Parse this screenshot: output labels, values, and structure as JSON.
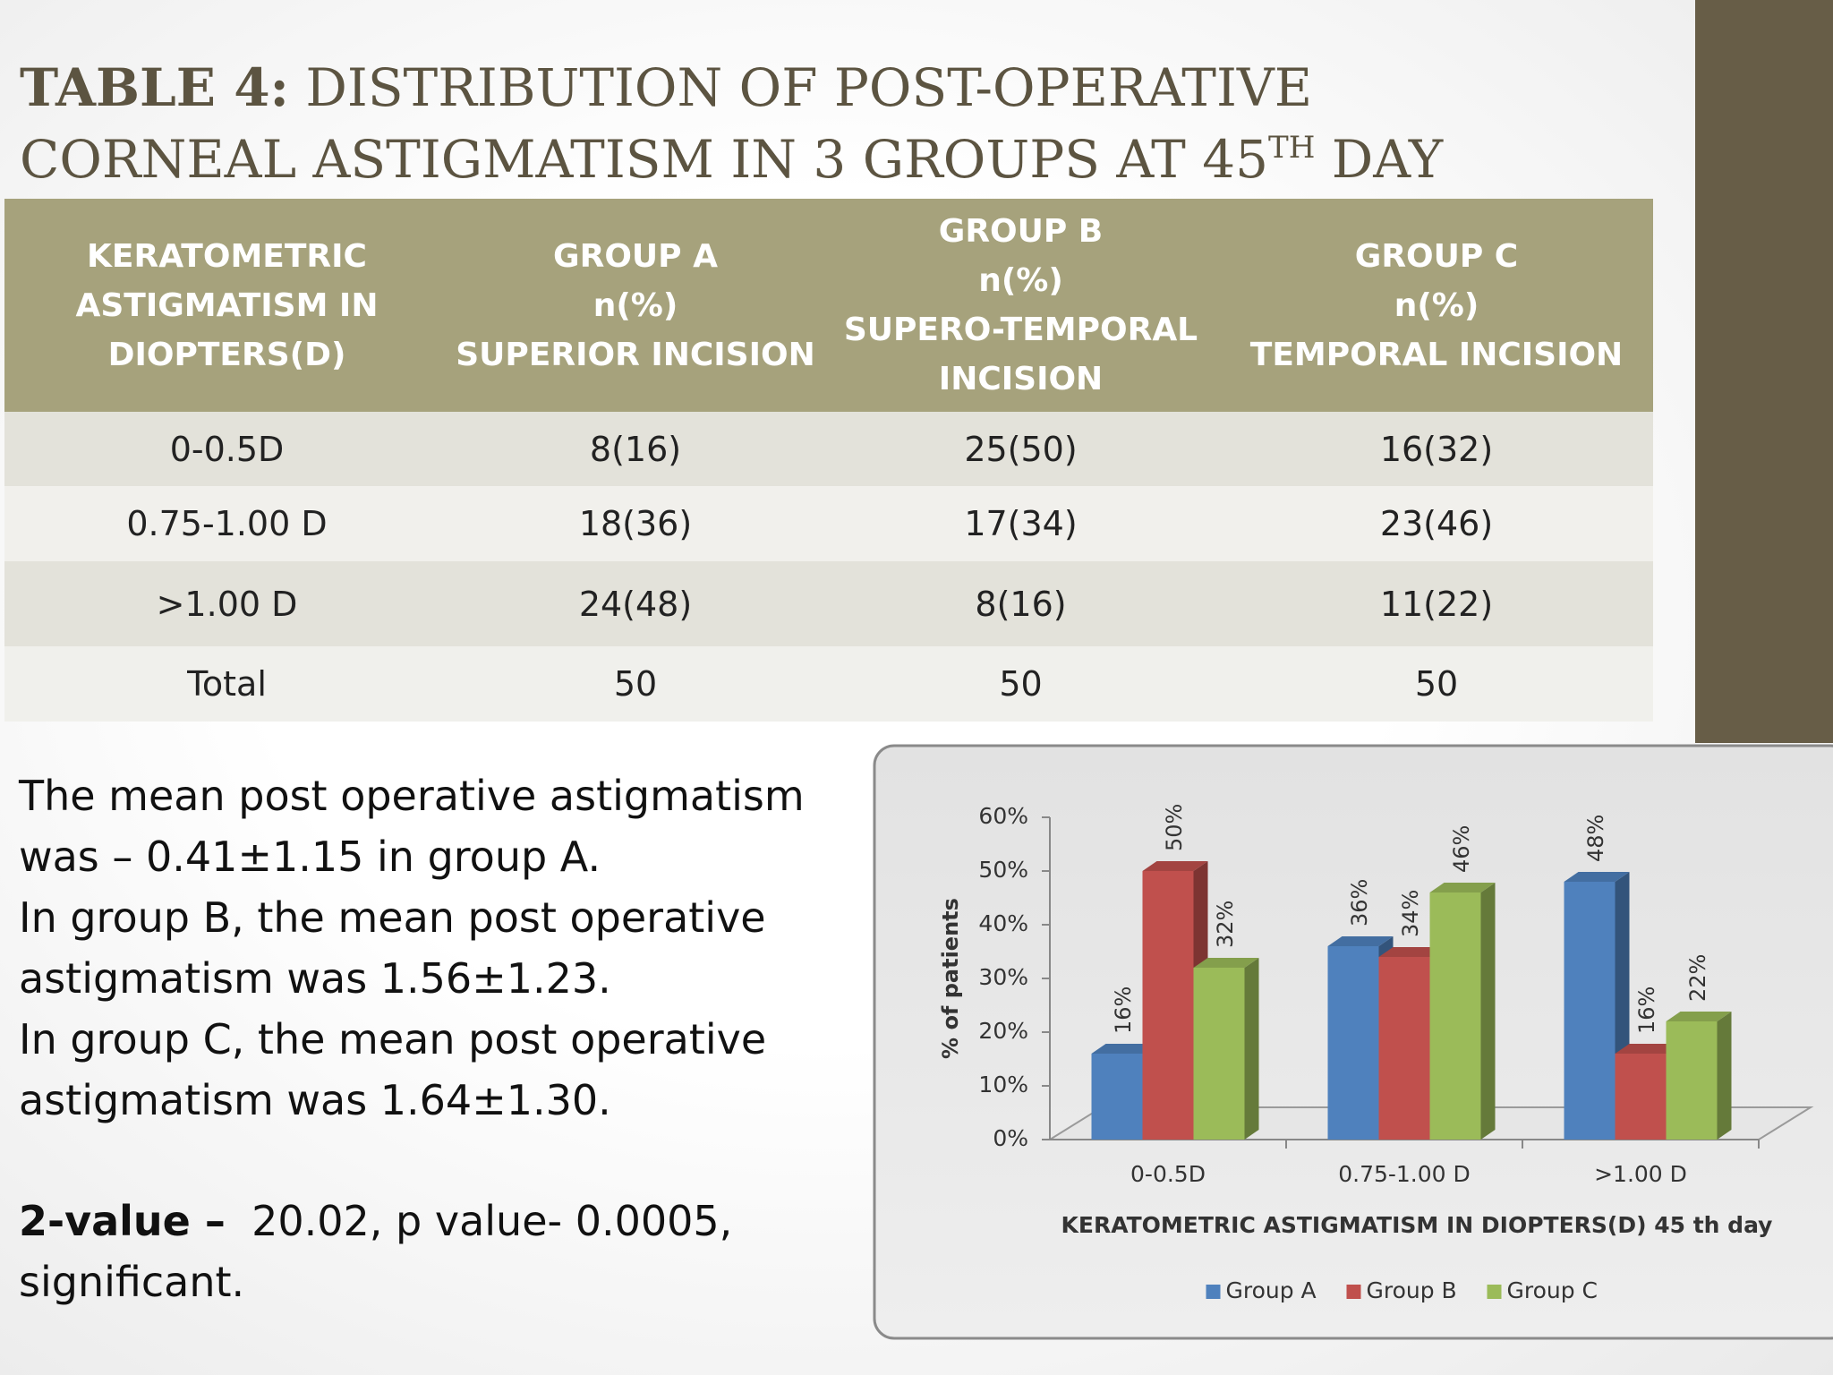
{
  "title": {
    "label": "TABLE 4:",
    "lines": [
      "DISTRIBUTION OF POST-OPERATIVE",
      "CORNEAL ASTIGMATISM IN 3 GROUPS AT 45"
    ],
    "superscript": "TH",
    "end": "DAY"
  },
  "table": {
    "header": [
      [
        "KERATOMETRIC",
        "ASTIGMATISM IN",
        "DIOPTERS(D)"
      ],
      [
        "GROUP A",
        "n(%)",
        "SUPERIOR INCISION"
      ],
      [
        "GROUP B",
        "n(%)",
        "SUPERO-TEMPORAL",
        "INCISION"
      ],
      [
        "GROUP C",
        "n(%)",
        "TEMPORAL INCISION"
      ]
    ],
    "rows": [
      [
        "0-0.5D",
        "8(16)",
        "25(50)",
        "16(32)"
      ],
      [
        "0.75-1.00 D",
        "18(36)",
        "17(34)",
        "23(46)"
      ],
      [
        ">1.00 D",
        "24(48)",
        "8(16)",
        "11(22)"
      ],
      [
        "Total",
        "50",
        "50",
        "50"
      ]
    ]
  },
  "notes": [
    "The mean post operative astigmatism",
    "was – 0.41±1.15 in group A.",
    "In group B, the mean post operative",
    "astigmatism was 1.56±1.23.",
    "In group C, the mean post operative",
    "astigmatism was 1.64±1.30."
  ],
  "stat": {
    "label": "2-value –",
    "lines": [
      "20.02, p value- 0.0005,",
      "significant."
    ]
  },
  "chart_data": {
    "type": "bar",
    "y_label": "% of patients",
    "x_label": "KERATOMETRIC ASTIGMATISM IN DIOPTERS(D) 45 th day",
    "categories": [
      "0-0.5D",
      "0.75-1.00 D",
      ">1.00 D"
    ],
    "series": [
      {
        "name": "Group A",
        "color": "#4f81bd",
        "values": [
          16,
          36,
          48
        ],
        "value_labels": [
          "16%",
          "36%",
          "48%"
        ]
      },
      {
        "name": "Group B",
        "color": "#c0504d",
        "values": [
          50,
          34,
          16
        ],
        "value_labels": [
          "50%",
          "34%",
          "16%"
        ]
      },
      {
        "name": "Group C",
        "color": "#9bbb59",
        "values": [
          32,
          46,
          22
        ],
        "value_labels": [
          "32%",
          "46%",
          "22%"
        ]
      }
    ],
    "ylim": [
      0,
      60
    ],
    "yticks": [
      {
        "value": 0,
        "label": "0%"
      },
      {
        "value": 10,
        "label": "10%"
      },
      {
        "value": 20,
        "label": "20%"
      },
      {
        "value": 30,
        "label": "30%"
      },
      {
        "value": 40,
        "label": "40%"
      },
      {
        "value": 50,
        "label": "50%"
      },
      {
        "value": 60,
        "label": "60%"
      }
    ],
    "legend": "bottom"
  }
}
